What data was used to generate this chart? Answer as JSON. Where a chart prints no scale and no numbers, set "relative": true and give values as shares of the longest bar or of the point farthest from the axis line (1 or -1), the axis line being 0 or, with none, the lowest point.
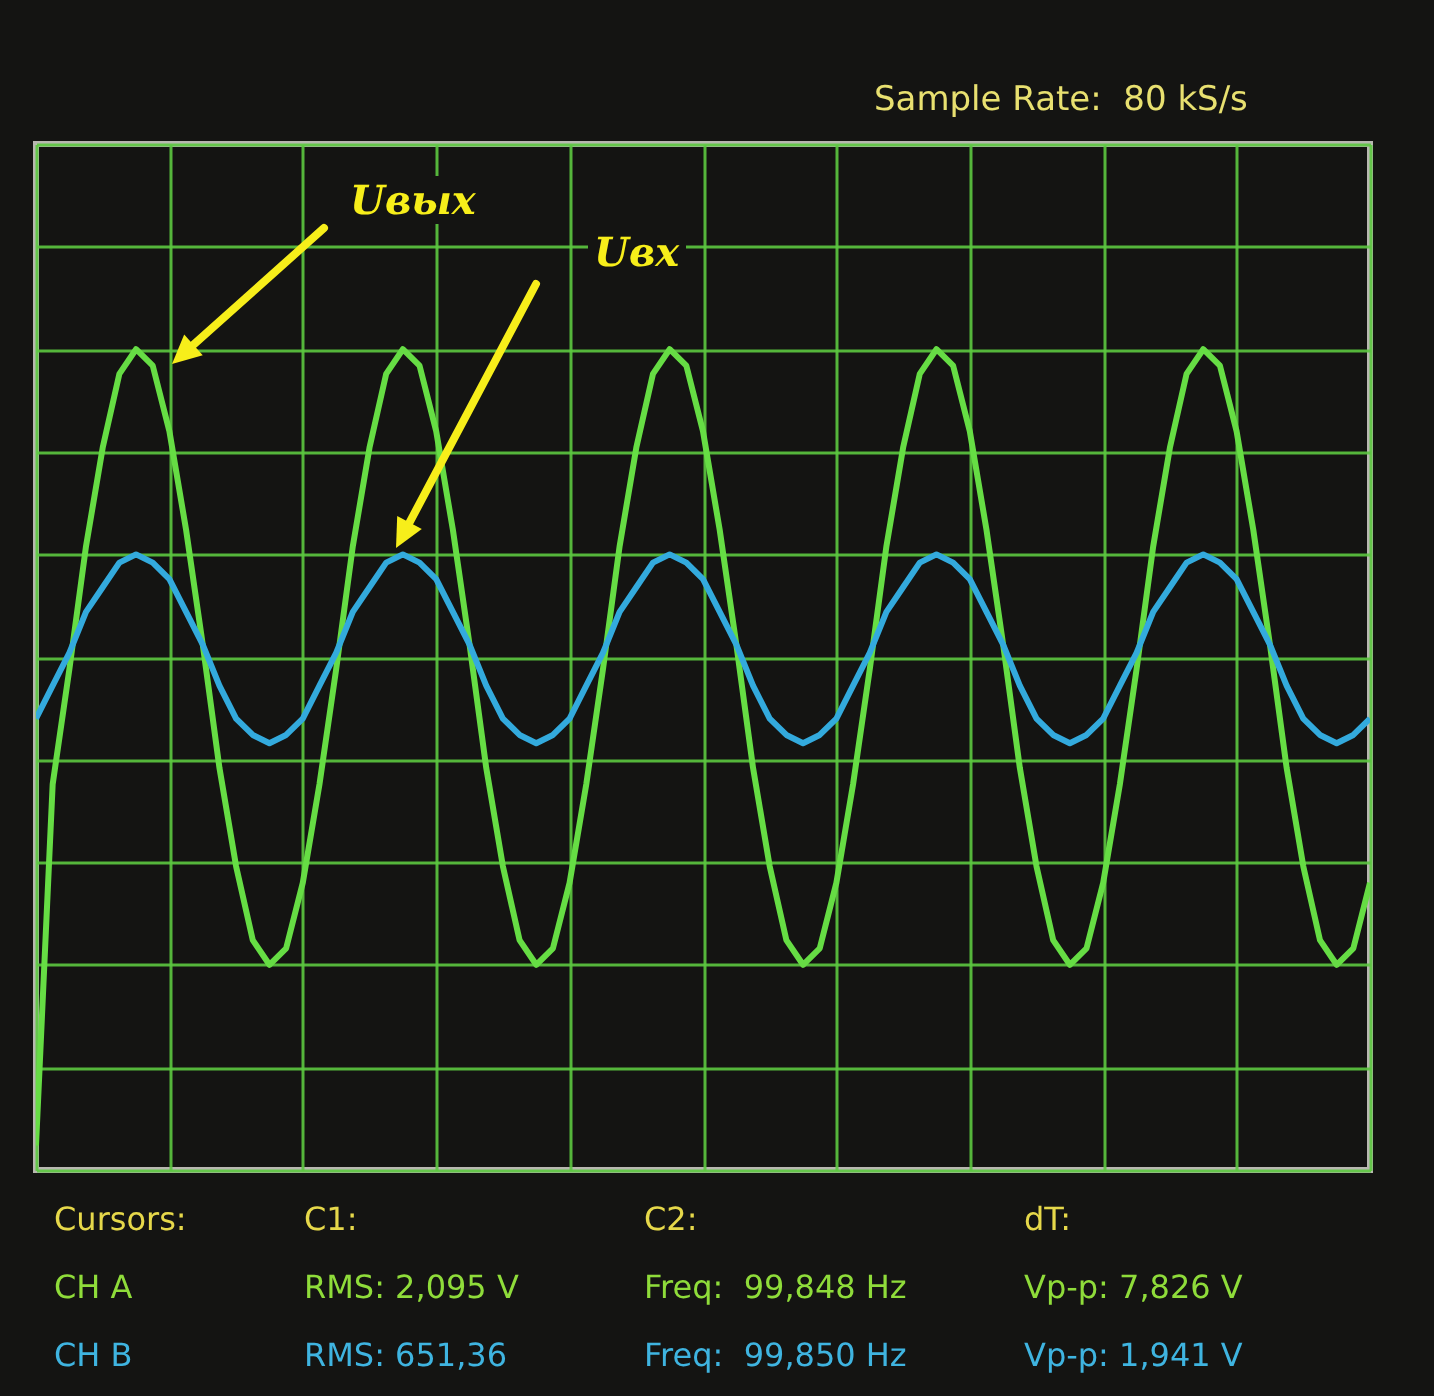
{
  "chart_data": {
    "type": "line",
    "relative": true,
    "grid": true,
    "categories": [
      null,
      null,
      null,
      null,
      null,
      null,
      null,
      null,
      null,
      null,
      null,
      null,
      null,
      null,
      null,
      null,
      null,
      null,
      null,
      null,
      null,
      null,
      null,
      null,
      null,
      null,
      null,
      null,
      null,
      null,
      null,
      null,
      null,
      null,
      null,
      null,
      null,
      null,
      null,
      null,
      null,
      null,
      null,
      null,
      null,
      null,
      null,
      null,
      null,
      null,
      null,
      null,
      null,
      null,
      null,
      null,
      null,
      null,
      null,
      null,
      null,
      null,
      null,
      null,
      null,
      null,
      null,
      null,
      null,
      null,
      null,
      null,
      null,
      null,
      null,
      null,
      null,
      null,
      null,
      null,
      null
    ],
    "series": [
      {
        "color": "#66dd44",
        "values": [
          0.03,
          0.47,
          0.61,
          0.76,
          0.88,
          0.97,
          1.0,
          0.98,
          0.9,
          0.78,
          0.64,
          0.49,
          0.37,
          0.28,
          0.25,
          0.27,
          0.35,
          0.47,
          0.61,
          0.76,
          0.88,
          0.97,
          1.0,
          0.98,
          0.9,
          0.78,
          0.64,
          0.49,
          0.37,
          0.28,
          0.25,
          0.27,
          0.35,
          0.47,
          0.61,
          0.76,
          0.88,
          0.97,
          1.0,
          0.98,
          0.9,
          0.78,
          0.64,
          0.49,
          0.37,
          0.28,
          0.25,
          0.27,
          0.35,
          0.47,
          0.61,
          0.76,
          0.88,
          0.97,
          1.0,
          0.98,
          0.9,
          0.78,
          0.64,
          0.49,
          0.37,
          0.28,
          0.25,
          0.27,
          0.35,
          0.47,
          0.61,
          0.76,
          0.88,
          0.97,
          1.0,
          0.98,
          0.9,
          0.78,
          0.64,
          0.49,
          0.37,
          0.28,
          0.25,
          0.27,
          0.35
        ]
      },
      {
        "color": "#33aadd",
        "values": [
          0.55,
          0.59,
          0.63,
          0.68,
          0.71,
          0.74,
          0.75,
          0.74,
          0.72,
          0.68,
          0.64,
          0.59,
          0.55,
          0.53,
          0.52,
          0.53,
          0.55,
          0.59,
          0.63,
          0.68,
          0.71,
          0.74,
          0.75,
          0.74,
          0.72,
          0.68,
          0.64,
          0.59,
          0.55,
          0.53,
          0.52,
          0.53,
          0.55,
          0.59,
          0.63,
          0.68,
          0.71,
          0.74,
          0.75,
          0.74,
          0.72,
          0.68,
          0.64,
          0.59,
          0.55,
          0.53,
          0.52,
          0.53,
          0.55,
          0.59,
          0.63,
          0.68,
          0.71,
          0.74,
          0.75,
          0.74,
          0.72,
          0.68,
          0.64,
          0.59,
          0.55,
          0.53,
          0.52,
          0.53,
          0.55,
          0.59,
          0.63,
          0.68,
          0.71,
          0.74,
          0.75,
          0.74,
          0.72,
          0.68,
          0.64,
          0.59,
          0.55,
          0.53,
          0.52,
          0.53,
          0.55
        ]
      }
    ],
    "annotations": [
      "Uвых",
      "Uвх",
      "Sample Rate:  80 kS/s",
      "Cursors:",
      "C1:",
      "C2:",
      "dT:",
      "CH A",
      "RMS: 2,095 V",
      "Freq:  99,848 Hz",
      "Vp-p: 7,826 V",
      "CH B",
      "RMS: 651,36",
      "Freq:  99,850 Hz",
      "Vp-p: 1,941 V"
    ]
  }
}
